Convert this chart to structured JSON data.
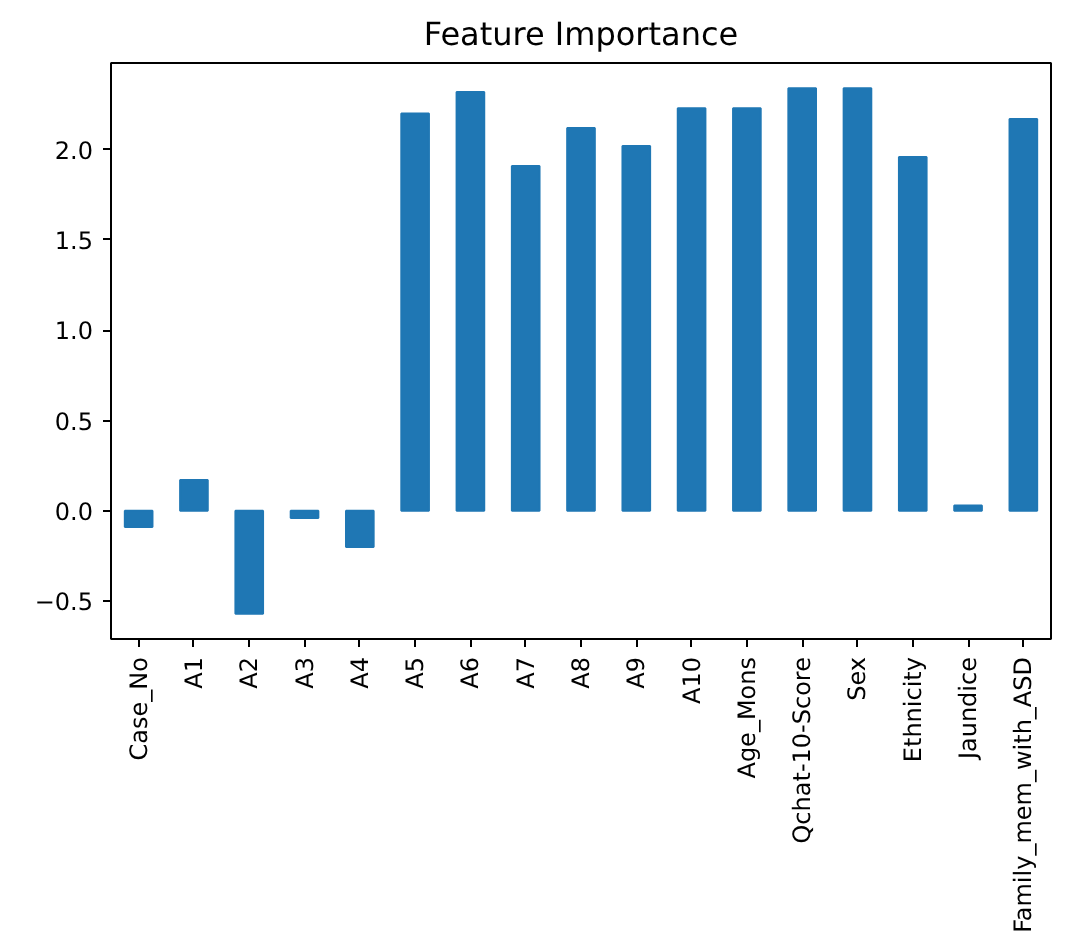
{
  "chart_data": {
    "type": "bar",
    "title": "Feature Importance",
    "categories": [
      "Case_No",
      "A1",
      "A2",
      "A3",
      "A4",
      "A5",
      "A6",
      "A7",
      "A8",
      "A9",
      "A10",
      "Age_Mons",
      "Qchat-10-Score",
      "Sex",
      "Ethnicity",
      "Jaundice",
      "Family_mem_with_ASD"
    ],
    "values": [
      -0.09,
      0.17,
      -0.57,
      -0.04,
      -0.2,
      2.2,
      2.32,
      1.91,
      2.12,
      2.02,
      2.23,
      2.23,
      2.34,
      2.34,
      1.96,
      0.03,
      2.17
    ],
    "color": "#1f77b4",
    "ylim": [
      -0.71,
      2.48
    ],
    "yticks": [
      {
        "value": -0.5,
        "label": "−0.5"
      },
      {
        "value": 0,
        "label": "0.0"
      },
      {
        "value": 0.5,
        "label": "0.5"
      },
      {
        "value": 1,
        "label": "1.0"
      },
      {
        "value": 1.5,
        "label": "1.5"
      },
      {
        "value": 2,
        "label": "2.0"
      }
    ],
    "grid": false
  }
}
